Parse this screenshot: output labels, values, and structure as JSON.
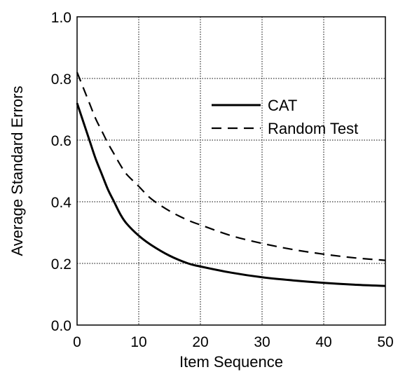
{
  "chart_data": {
    "type": "line",
    "title": "",
    "xlabel": "Item Sequence",
    "ylabel": "Average Standard Errors",
    "xlim": [
      0,
      50
    ],
    "ylim": [
      0.0,
      1.0
    ],
    "x_ticks": [
      0,
      10,
      20,
      30,
      40,
      50
    ],
    "y_ticks": [
      0.0,
      0.2,
      0.4,
      0.6,
      0.8,
      1.0
    ],
    "x_tick_labels": [
      "0",
      "10",
      "20",
      "30",
      "40",
      "50"
    ],
    "y_tick_labels": [
      "0.0",
      "0.2",
      "0.4",
      "0.6",
      "0.8",
      "1.0"
    ],
    "grid": true,
    "legend_position": "top-right",
    "series": [
      {
        "name": "CAT",
        "style": "solid",
        "color": "#000000",
        "x": [
          0,
          1,
          2,
          3,
          4,
          5,
          6,
          7,
          8,
          10,
          12,
          15,
          18,
          20,
          25,
          30,
          35,
          40,
          45,
          50
        ],
        "y": [
          0.72,
          0.66,
          0.6,
          0.54,
          0.49,
          0.44,
          0.4,
          0.36,
          0.33,
          0.29,
          0.26,
          0.225,
          0.2,
          0.19,
          0.17,
          0.155,
          0.145,
          0.137,
          0.131,
          0.127
        ]
      },
      {
        "name": "Random Test",
        "style": "dashed",
        "color": "#000000",
        "x": [
          0,
          1,
          2,
          3,
          4,
          5,
          6,
          7,
          8,
          10,
          12,
          15,
          18,
          20,
          25,
          30,
          35,
          40,
          45,
          50
        ],
        "y": [
          0.82,
          0.77,
          0.72,
          0.67,
          0.63,
          0.59,
          0.555,
          0.52,
          0.49,
          0.45,
          0.41,
          0.37,
          0.34,
          0.325,
          0.29,
          0.265,
          0.245,
          0.23,
          0.218,
          0.21
        ]
      }
    ]
  }
}
